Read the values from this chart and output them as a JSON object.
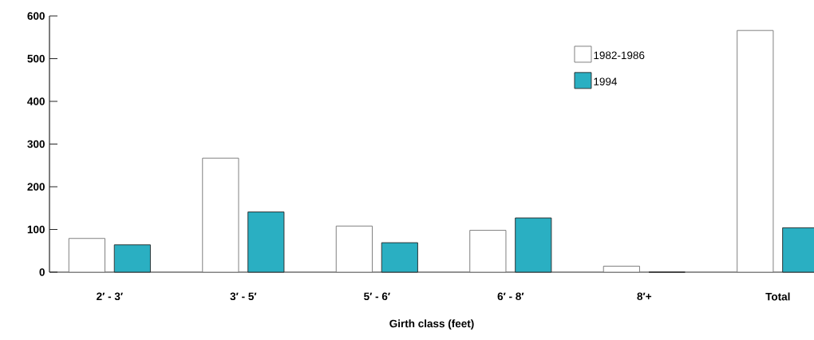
{
  "chart_data": {
    "type": "bar",
    "xlabel": "Girth class (feet)",
    "categories": [
      "2′ - 3′",
      "3′ - 5′",
      "5′ - 6′",
      "6′ - 8′",
      "8′+",
      "Total"
    ],
    "series": [
      {
        "name": "1982-1986",
        "color": "#ffffff",
        "values": [
          79,
          267,
          108,
          98,
          14,
          566
        ]
      },
      {
        "name": "1994",
        "color": "#2aafc2",
        "values": [
          64,
          141,
          69,
          127,
          0,
          104
        ]
      }
    ],
    "ylim": [
      0,
      600
    ],
    "yticks": [
      0,
      100,
      200,
      300,
      400,
      500,
      600
    ],
    "grid": false,
    "legend": "top right"
  }
}
